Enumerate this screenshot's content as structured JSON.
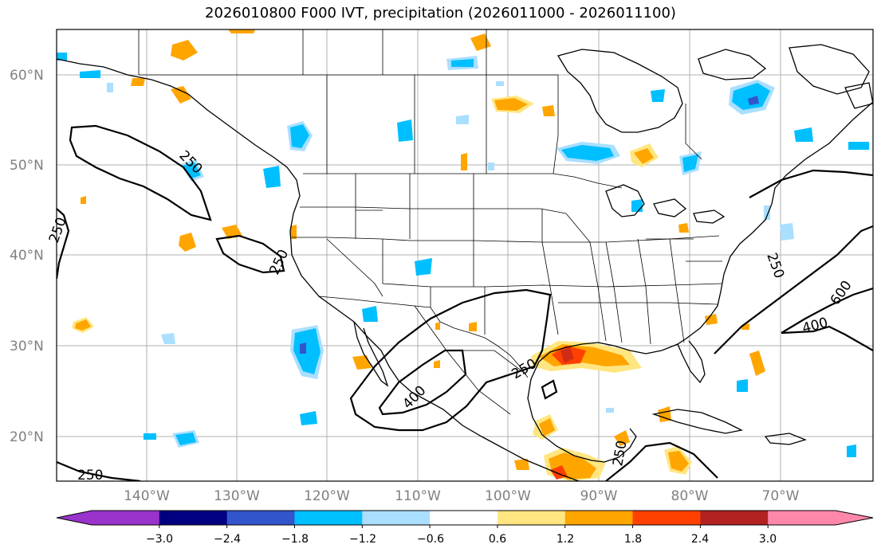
{
  "title": "2026010800 F000 IVT, precipitation (2026011000 - 2026011100)",
  "map": {
    "lat_ticks": [
      "60°N",
      "50°N",
      "40°N",
      "30°N",
      "20°N"
    ],
    "lon_ticks": [
      "140°W",
      "130°W",
      "120°W",
      "110°W",
      "100°W",
      "90°W",
      "80°W",
      "70°W"
    ],
    "contour_labels": [
      "250",
      "250",
      "250",
      "250",
      "250",
      "250",
      "250",
      "400",
      "400",
      "600"
    ]
  },
  "colorbar": {
    "ticks": [
      "−3.0",
      "−2.4",
      "−1.8",
      "−1.2",
      "−0.6",
      "0.6",
      "1.2",
      "1.8",
      "2.4",
      "3.0"
    ],
    "colors": [
      "#9933cc",
      "#000080",
      "#3355cc",
      "#00bfff",
      "#aadfff",
      "#ffffff",
      "#ffe680",
      "#ffa500",
      "#ff4000",
      "#b22222",
      "#ff88aa"
    ]
  }
}
